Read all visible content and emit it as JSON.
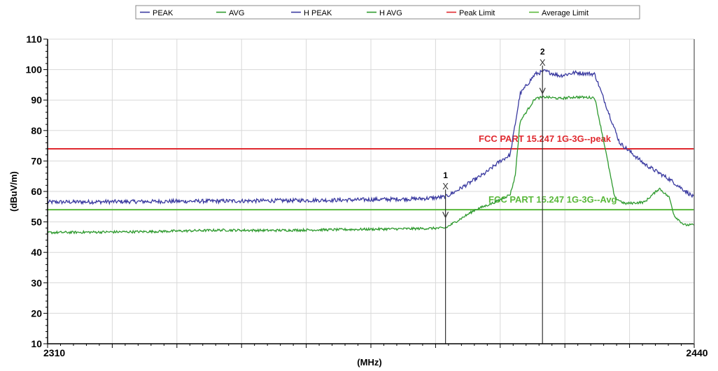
{
  "chart_data": {
    "type": "line",
    "xlabel": "(MHz)",
    "ylabel": "(dBuV/m)",
    "xlim": [
      2310,
      2440
    ],
    "ylim": [
      10,
      110
    ],
    "x_ticks": [
      "2310",
      "2440"
    ],
    "y_ticks": [
      "10",
      "20",
      "30",
      "40",
      "50",
      "60",
      "70",
      "80",
      "90",
      "100",
      "110"
    ],
    "grid": true,
    "legend_position": "top",
    "legend": [
      {
        "name": "PEAK",
        "color": "#3a3aa0"
      },
      {
        "name": "AVG",
        "color": "#2e9a2e"
      },
      {
        "name": "H PEAK",
        "color": "#3a3aa0"
      },
      {
        "name": "H AVG",
        "color": "#2e9a2e"
      },
      {
        "name": "Peak Limit",
        "color": "#e0282e"
      },
      {
        "name": "Average Limit",
        "color": "#59b83a"
      }
    ],
    "series": [
      {
        "name": "PEAK",
        "color": "#3a3aa0",
        "x": [
          2310,
          2330,
          2350,
          2370,
          2385,
          2390,
          2392,
          2395,
          2398,
          2401,
          2403,
          2405,
          2408,
          2410,
          2413,
          2416,
          2420,
          2425,
          2430,
          2435,
          2440
        ],
        "y": [
          56.5,
          56.7,
          56.9,
          57.2,
          57.6,
          58.2,
          60,
          63,
          66,
          70,
          72,
          92,
          98.5,
          99.5,
          98,
          99,
          98.5,
          76,
          69,
          64,
          58
        ]
      },
      {
        "name": "AVG",
        "color": "#2e9a2e",
        "x": [
          2310,
          2330,
          2345,
          2355,
          2370,
          2385,
          2390,
          2393,
          2396,
          2400,
          2403,
          2404,
          2405,
          2408,
          2410,
          2413,
          2416,
          2420,
          2422,
          2424,
          2426,
          2430,
          2433,
          2435,
          2436,
          2438,
          2440
        ],
        "y": [
          46.5,
          46.8,
          47.3,
          47.2,
          47.5,
          47.8,
          48,
          51,
          54,
          56.5,
          59,
          65,
          83,
          90.5,
          91,
          90.5,
          91,
          90.8,
          75,
          58,
          56,
          56.5,
          61,
          58,
          52,
          49,
          49
        ]
      }
    ],
    "limits": [
      {
        "name": "Peak Limit",
        "value": 74,
        "color": "#e0282e",
        "label": "FCC PART 15.247 1G-3G--peak"
      },
      {
        "name": "Average Limit",
        "value": 54,
        "color": "#59b83a",
        "label": "FCC PART 15.247 1G-3G--Avg"
      }
    ],
    "markers": [
      {
        "number": "1",
        "symbol": "X",
        "x": 2390,
        "y": 58.8
      },
      {
        "number": "2",
        "symbol": "X",
        "x": 2409.5,
        "y": 99.5
      }
    ]
  }
}
